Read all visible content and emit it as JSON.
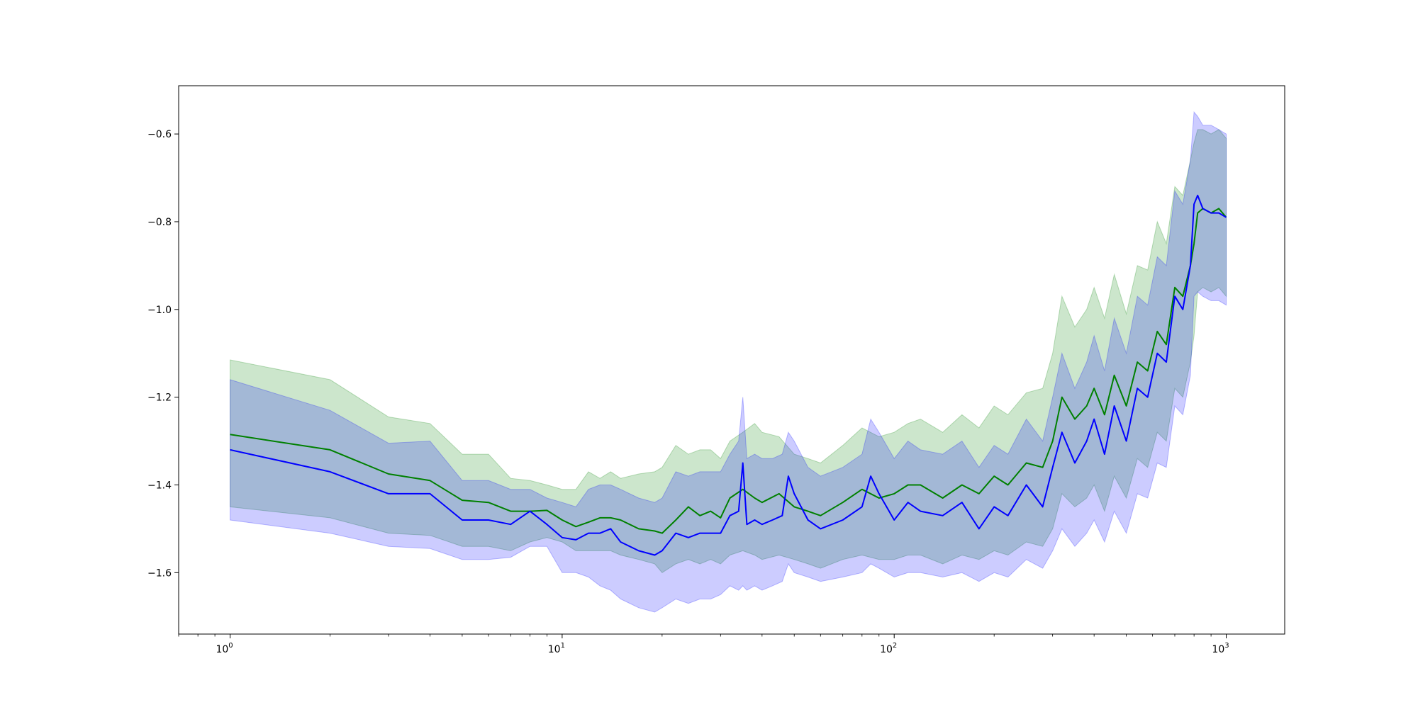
{
  "chart_data": {
    "type": "line",
    "title": "",
    "xlabel": "",
    "ylabel": "",
    "xscale": "log",
    "xlim": [
      0.7,
      1500
    ],
    "ylim": [
      -1.74,
      -0.49
    ],
    "grid": false,
    "legend": "none",
    "x_ticks": [
      {
        "base": "10",
        "exp": "0",
        "value": 1
      },
      {
        "base": "10",
        "exp": "1",
        "value": 10
      },
      {
        "base": "10",
        "exp": "2",
        "value": 100
      },
      {
        "base": "10",
        "exp": "3",
        "value": 1000
      }
    ],
    "y_ticks": [
      {
        "label": "−0.6",
        "value": -0.6
      },
      {
        "label": "−0.8",
        "value": -0.8
      },
      {
        "label": "−1.0",
        "value": -1.0
      },
      {
        "label": "−1.2",
        "value": -1.2
      },
      {
        "label": "−1.4",
        "value": -1.4
      },
      {
        "label": "−1.6",
        "value": -1.6
      }
    ],
    "series": [
      {
        "color": "#008000",
        "band_color": "#008000",
        "band_opacity": 0.2,
        "x": [
          1,
          2,
          3,
          4,
          5,
          6,
          7,
          8,
          9,
          10,
          11,
          12,
          13,
          14,
          15,
          17,
          19,
          20,
          22,
          24,
          26,
          28,
          30,
          32,
          35,
          38,
          40,
          45,
          50,
          55,
          60,
          70,
          80,
          90,
          100,
          110,
          120,
          140,
          160,
          180,
          200,
          220,
          250,
          280,
          300,
          320,
          350,
          380,
          400,
          430,
          460,
          500,
          540,
          580,
          620,
          660,
          700,
          740,
          780,
          800,
          820,
          850,
          900,
          950,
          1000
        ],
        "mean": [
          -1.285,
          -1.32,
          -1.375,
          -1.39,
          -1.435,
          -1.44,
          -1.46,
          -1.46,
          -1.458,
          -1.48,
          -1.495,
          -1.485,
          -1.475,
          -1.475,
          -1.48,
          -1.5,
          -1.505,
          -1.51,
          -1.48,
          -1.45,
          -1.47,
          -1.46,
          -1.475,
          -1.43,
          -1.41,
          -1.43,
          -1.44,
          -1.42,
          -1.45,
          -1.46,
          -1.47,
          -1.44,
          -1.41,
          -1.43,
          -1.42,
          -1.4,
          -1.4,
          -1.43,
          -1.4,
          -1.42,
          -1.38,
          -1.4,
          -1.35,
          -1.36,
          -1.3,
          -1.2,
          -1.25,
          -1.22,
          -1.18,
          -1.24,
          -1.15,
          -1.22,
          -1.12,
          -1.14,
          -1.05,
          -1.08,
          -0.95,
          -0.97,
          -0.9,
          -0.85,
          -0.78,
          -0.77,
          -0.78,
          -0.77,
          -0.79
        ],
        "lower": [
          -1.45,
          -1.475,
          -1.51,
          -1.515,
          -1.54,
          -1.54,
          -1.55,
          -1.53,
          -1.52,
          -1.53,
          -1.55,
          -1.55,
          -1.55,
          -1.55,
          -1.56,
          -1.57,
          -1.58,
          -1.6,
          -1.58,
          -1.57,
          -1.58,
          -1.57,
          -1.58,
          -1.56,
          -1.55,
          -1.56,
          -1.57,
          -1.56,
          -1.57,
          -1.58,
          -1.59,
          -1.57,
          -1.56,
          -1.57,
          -1.57,
          -1.56,
          -1.56,
          -1.58,
          -1.56,
          -1.57,
          -1.55,
          -1.56,
          -1.53,
          -1.54,
          -1.5,
          -1.42,
          -1.45,
          -1.43,
          -1.4,
          -1.46,
          -1.38,
          -1.43,
          -1.34,
          -1.36,
          -1.28,
          -1.3,
          -1.18,
          -1.2,
          -1.12,
          -1.06,
          -0.96,
          -0.95,
          -0.96,
          -0.95,
          -0.97
        ],
        "upper": [
          -1.115,
          -1.16,
          -1.245,
          -1.26,
          -1.33,
          -1.33,
          -1.385,
          -1.39,
          -1.4,
          -1.41,
          -1.41,
          -1.37,
          -1.385,
          -1.37,
          -1.385,
          -1.375,
          -1.37,
          -1.36,
          -1.31,
          -1.33,
          -1.32,
          -1.32,
          -1.34,
          -1.3,
          -1.28,
          -1.26,
          -1.28,
          -1.29,
          -1.33,
          -1.34,
          -1.35,
          -1.31,
          -1.27,
          -1.29,
          -1.28,
          -1.26,
          -1.25,
          -1.28,
          -1.24,
          -1.27,
          -1.22,
          -1.24,
          -1.19,
          -1.18,
          -1.1,
          -0.97,
          -1.04,
          -1.0,
          -0.95,
          -1.02,
          -0.92,
          -1.01,
          -0.9,
          -0.91,
          -0.8,
          -0.85,
          -0.72,
          -0.74,
          -0.66,
          -0.62,
          -0.59,
          -0.59,
          -0.6,
          -0.59,
          -0.61
        ]
      },
      {
        "color": "#0000ff",
        "band_color": "#0000ff",
        "band_opacity": 0.2,
        "x": [
          1,
          2,
          3,
          4,
          5,
          6,
          7,
          8,
          9,
          10,
          11,
          12,
          13,
          14,
          15,
          17,
          19,
          20,
          22,
          24,
          26,
          28,
          30,
          32,
          34,
          35,
          36,
          38,
          40,
          43,
          46,
          48,
          50,
          55,
          60,
          70,
          80,
          85,
          90,
          100,
          110,
          120,
          140,
          160,
          180,
          200,
          220,
          250,
          280,
          300,
          320,
          350,
          380,
          400,
          430,
          460,
          500,
          540,
          580,
          620,
          660,
          700,
          740,
          780,
          800,
          820,
          850,
          900,
          950,
          1000
        ],
        "mean": [
          -1.32,
          -1.37,
          -1.42,
          -1.42,
          -1.48,
          -1.48,
          -1.49,
          -1.46,
          -1.49,
          -1.52,
          -1.525,
          -1.51,
          -1.51,
          -1.5,
          -1.53,
          -1.55,
          -1.56,
          -1.55,
          -1.51,
          -1.52,
          -1.51,
          -1.51,
          -1.51,
          -1.47,
          -1.46,
          -1.35,
          -1.49,
          -1.48,
          -1.49,
          -1.48,
          -1.47,
          -1.38,
          -1.42,
          -1.48,
          -1.5,
          -1.48,
          -1.45,
          -1.38,
          -1.42,
          -1.48,
          -1.44,
          -1.46,
          -1.47,
          -1.44,
          -1.5,
          -1.45,
          -1.47,
          -1.4,
          -1.45,
          -1.36,
          -1.28,
          -1.35,
          -1.3,
          -1.25,
          -1.33,
          -1.22,
          -1.3,
          -1.18,
          -1.2,
          -1.1,
          -1.12,
          -0.97,
          -1.0,
          -0.9,
          -0.76,
          -0.74,
          -0.77,
          -0.78,
          -0.78,
          -0.79
        ],
        "lower": [
          -1.48,
          -1.51,
          -1.54,
          -1.545,
          -1.57,
          -1.57,
          -1.565,
          -1.54,
          -1.54,
          -1.6,
          -1.6,
          -1.61,
          -1.63,
          -1.64,
          -1.66,
          -1.68,
          -1.69,
          -1.68,
          -1.66,
          -1.67,
          -1.66,
          -1.66,
          -1.65,
          -1.63,
          -1.64,
          -1.63,
          -1.64,
          -1.63,
          -1.64,
          -1.63,
          -1.62,
          -1.58,
          -1.6,
          -1.61,
          -1.62,
          -1.61,
          -1.6,
          -1.58,
          -1.59,
          -1.61,
          -1.6,
          -1.6,
          -1.61,
          -1.6,
          -1.62,
          -1.6,
          -1.61,
          -1.57,
          -1.59,
          -1.55,
          -1.5,
          -1.54,
          -1.51,
          -1.48,
          -1.53,
          -1.46,
          -1.51,
          -1.42,
          -1.43,
          -1.35,
          -1.36,
          -1.22,
          -1.24,
          -1.15,
          -0.97,
          -0.96,
          -0.97,
          -0.98,
          -0.98,
          -0.99
        ],
        "upper": [
          -1.16,
          -1.23,
          -1.305,
          -1.3,
          -1.39,
          -1.39,
          -1.41,
          -1.41,
          -1.43,
          -1.44,
          -1.45,
          -1.41,
          -1.4,
          -1.4,
          -1.41,
          -1.43,
          -1.44,
          -1.43,
          -1.37,
          -1.38,
          -1.37,
          -1.37,
          -1.37,
          -1.33,
          -1.3,
          -1.2,
          -1.34,
          -1.33,
          -1.34,
          -1.34,
          -1.33,
          -1.28,
          -1.3,
          -1.36,
          -1.38,
          -1.36,
          -1.33,
          -1.25,
          -1.28,
          -1.34,
          -1.3,
          -1.32,
          -1.33,
          -1.3,
          -1.36,
          -1.31,
          -1.33,
          -1.25,
          -1.3,
          -1.2,
          -1.1,
          -1.18,
          -1.12,
          -1.06,
          -1.14,
          -1.02,
          -1.1,
          -0.97,
          -0.99,
          -0.88,
          -0.9,
          -0.73,
          -0.76,
          -0.66,
          -0.55,
          -0.56,
          -0.58,
          -0.58,
          -0.59,
          -0.6
        ]
      }
    ]
  }
}
